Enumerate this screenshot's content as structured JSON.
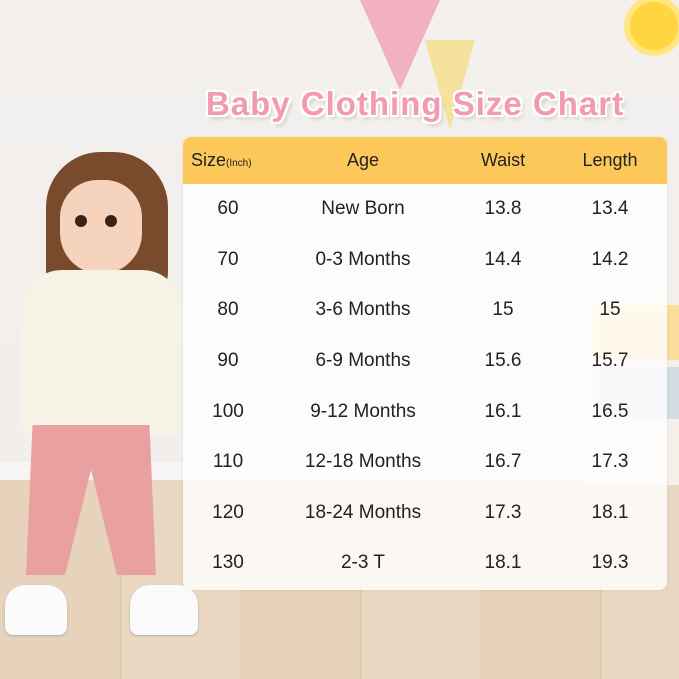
{
  "title": "Baby Clothing Size Chart",
  "table": {
    "headers": {
      "size": "Size",
      "size_unit": "(Inch)",
      "age": "Age",
      "waist": "Waist",
      "length": "Length"
    },
    "rows": [
      {
        "size": "60",
        "age": "New Born",
        "waist": "13.8",
        "length": "13.4"
      },
      {
        "size": "70",
        "age": "0-3 Months",
        "waist": "14.4",
        "length": "14.2"
      },
      {
        "size": "80",
        "age": "3-6 Months",
        "waist": "15",
        "length": "15"
      },
      {
        "size": "90",
        "age": "6-9 Months",
        "waist": "15.6",
        "length": "15.7"
      },
      {
        "size": "100",
        "age": "9-12 Months",
        "waist": "16.1",
        "length": "16.5"
      },
      {
        "size": "110",
        "age": "12-18 Months",
        "waist": "16.7",
        "length": "17.3"
      },
      {
        "size": "120",
        "age": "18-24 Months",
        "waist": "17.3",
        "length": "18.1"
      },
      {
        "size": "130",
        "age": "2-3 T",
        "waist": "18.1",
        "length": "19.3"
      }
    ]
  },
  "colors": {
    "title": "#f29ab0",
    "header_bg": "#fdc85a"
  }
}
